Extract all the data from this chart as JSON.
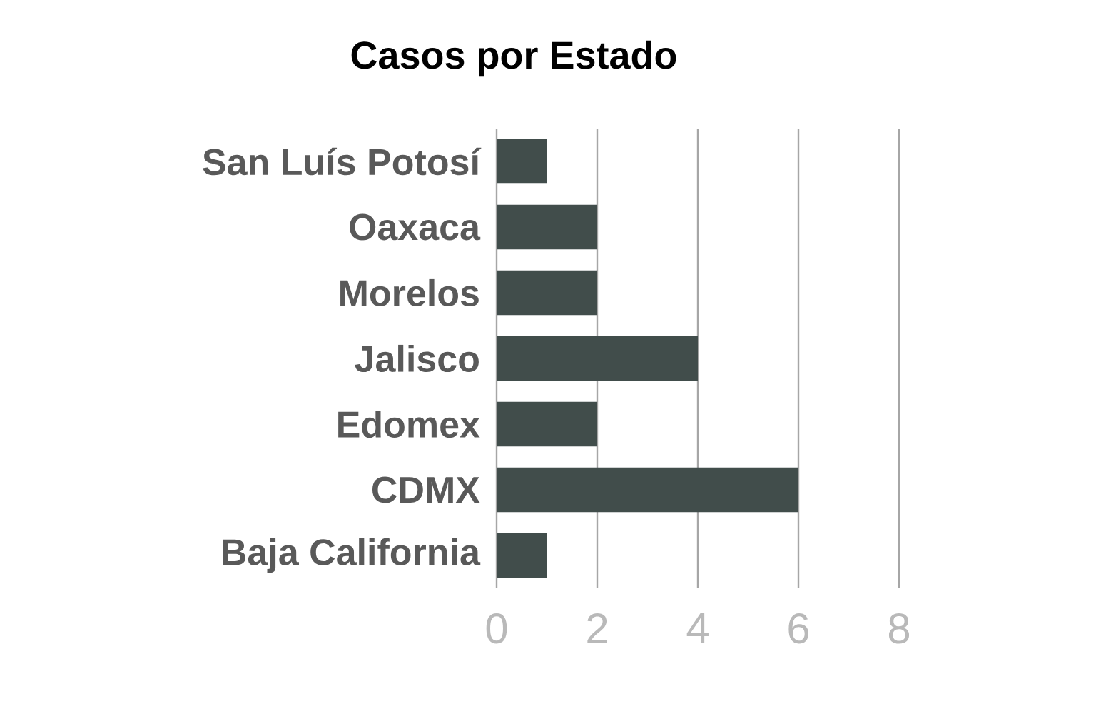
{
  "chart_data": {
    "type": "bar",
    "orientation": "horizontal",
    "title": "Casos por Estado",
    "categories": [
      "San Luís Potosí",
      "Oaxaca",
      "Morelos",
      "Jalisco",
      "Edomex",
      "CDMX",
      "Baja California"
    ],
    "values": [
      1,
      2,
      2,
      4,
      2,
      6,
      1
    ],
    "color": "#414d4b",
    "xlim": [
      0,
      8
    ],
    "xticks": [
      0,
      2,
      4,
      6,
      8
    ],
    "grid": "x"
  }
}
